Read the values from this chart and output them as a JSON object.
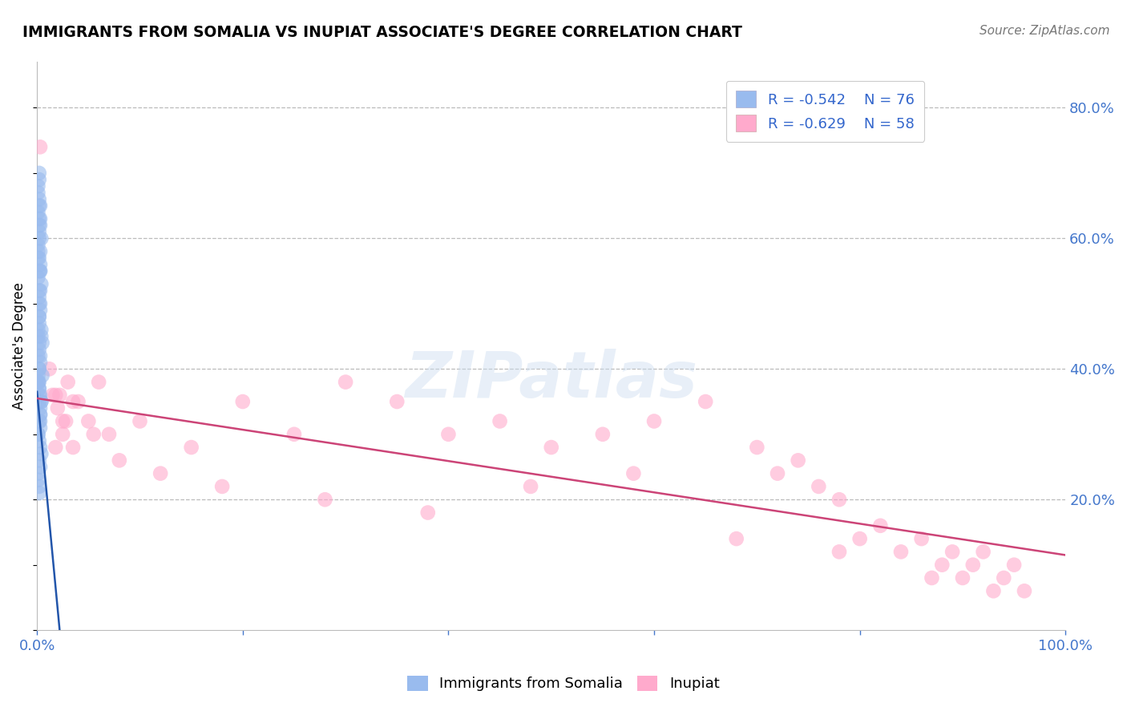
{
  "title": "IMMIGRANTS FROM SOMALIA VS INUPIAT ASSOCIATE'S DEGREE CORRELATION CHART",
  "source": "Source: ZipAtlas.com",
  "ylabel": "Associate's Degree",
  "legend_label1": "Immigrants from Somalia",
  "legend_label2": "Inupiat",
  "R1": "-0.542",
  "N1": "76",
  "R2": "-0.629",
  "N2": "58",
  "color_blue": "#99BBEE",
  "color_pink": "#FFAACC",
  "line_blue": "#2255AA",
  "line_pink": "#CC4477",
  "watermark": "ZIPatlas",
  "blue_points_x": [
    0.001,
    0.002,
    0.001,
    0.003,
    0.002,
    0.001,
    0.002,
    0.003,
    0.002,
    0.001,
    0.002,
    0.003,
    0.004,
    0.002,
    0.001,
    0.003,
    0.002,
    0.001,
    0.002,
    0.003,
    0.002,
    0.001,
    0.003,
    0.002,
    0.001,
    0.002,
    0.003,
    0.002,
    0.004,
    0.003,
    0.002,
    0.001,
    0.003,
    0.002,
    0.004,
    0.005,
    0.003,
    0.002,
    0.001,
    0.002,
    0.003,
    0.002,
    0.001,
    0.004,
    0.003,
    0.002,
    0.005,
    0.003,
    0.002,
    0.001,
    0.002,
    0.003,
    0.004,
    0.002,
    0.003,
    0.001,
    0.002,
    0.003,
    0.004,
    0.002,
    0.001,
    0.003,
    0.002,
    0.001,
    0.002,
    0.003,
    0.002,
    0.004,
    0.003,
    0.002,
    0.001,
    0.002,
    0.003,
    0.002,
    0.001,
    0.002
  ],
  "blue_points_y": [
    0.3,
    0.35,
    0.38,
    0.32,
    0.4,
    0.42,
    0.44,
    0.36,
    0.38,
    0.46,
    0.48,
    0.5,
    0.45,
    0.52,
    0.54,
    0.56,
    0.5,
    0.58,
    0.6,
    0.55,
    0.62,
    0.64,
    0.58,
    0.66,
    0.68,
    0.63,
    0.65,
    0.7,
    0.6,
    0.62,
    0.55,
    0.57,
    0.52,
    0.48,
    0.46,
    0.44,
    0.42,
    0.4,
    0.38,
    0.36,
    0.34,
    0.32,
    0.3,
    0.35,
    0.33,
    0.37,
    0.39,
    0.28,
    0.26,
    0.24,
    0.22,
    0.25,
    0.27,
    0.29,
    0.31,
    0.23,
    0.21,
    0.33,
    0.35,
    0.37,
    0.39,
    0.41,
    0.43,
    0.45,
    0.47,
    0.49,
    0.51,
    0.53,
    0.55,
    0.57,
    0.59,
    0.61,
    0.63,
    0.65,
    0.67,
    0.69
  ],
  "pink_points_x": [
    0.003,
    0.015,
    0.02,
    0.025,
    0.018,
    0.022,
    0.028,
    0.035,
    0.03,
    0.04,
    0.05,
    0.06,
    0.07,
    0.1,
    0.15,
    0.2,
    0.25,
    0.3,
    0.35,
    0.4,
    0.45,
    0.5,
    0.55,
    0.6,
    0.65,
    0.7,
    0.72,
    0.74,
    0.76,
    0.78,
    0.8,
    0.82,
    0.84,
    0.86,
    0.87,
    0.88,
    0.89,
    0.9,
    0.91,
    0.92,
    0.93,
    0.94,
    0.95,
    0.96,
    0.012,
    0.018,
    0.025,
    0.035,
    0.055,
    0.08,
    0.12,
    0.18,
    0.28,
    0.38,
    0.48,
    0.58,
    0.68,
    0.78
  ],
  "pink_points_y": [
    0.74,
    0.36,
    0.34,
    0.3,
    0.28,
    0.36,
    0.32,
    0.35,
    0.38,
    0.35,
    0.32,
    0.38,
    0.3,
    0.32,
    0.28,
    0.35,
    0.3,
    0.38,
    0.35,
    0.3,
    0.32,
    0.28,
    0.3,
    0.32,
    0.35,
    0.28,
    0.24,
    0.26,
    0.22,
    0.2,
    0.14,
    0.16,
    0.12,
    0.14,
    0.08,
    0.1,
    0.12,
    0.08,
    0.1,
    0.12,
    0.06,
    0.08,
    0.1,
    0.06,
    0.4,
    0.36,
    0.32,
    0.28,
    0.3,
    0.26,
    0.24,
    0.22,
    0.2,
    0.18,
    0.22,
    0.24,
    0.14,
    0.12
  ],
  "blue_line_x": [
    0.0,
    0.022
  ],
  "blue_line_y": [
    0.365,
    0.0
  ],
  "pink_line_x": [
    0.0,
    1.0
  ],
  "pink_line_y": [
    0.355,
    0.115
  ],
  "xlim": [
    0,
    1.0
  ],
  "ylim": [
    0,
    0.87
  ],
  "yticks": [
    0.2,
    0.4,
    0.6,
    0.8
  ],
  "ytick_labels": [
    "20.0%",
    "40.0%",
    "60.0%",
    "80.0%"
  ],
  "xtick_positions": [
    0.0,
    1.0
  ],
  "xtick_labels": [
    "0.0%",
    "100.0%"
  ]
}
